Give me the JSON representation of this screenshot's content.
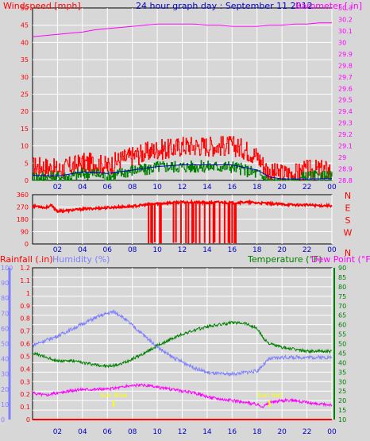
{
  "header": {
    "left": "Windspeed [mph]",
    "center": "24 hour graph day : September 11 2012",
    "right": "Barometer [.in]"
  },
  "colors": {
    "background": "#d7d7d7",
    "grid": "#ffffff",
    "wind": "#ff0000",
    "gust_dark": "#008000",
    "wind_avg": "#0000cc",
    "barometer": "#ff00ff",
    "direction": "#ff0000",
    "rain": "#ff0000",
    "humidity": "#8080ff",
    "temperature": "#008000",
    "dewpoint": "#ff00ff",
    "title_blue": "#0000cc",
    "sun_marker": "#ffff00"
  },
  "x_ticks": [
    "02",
    "04",
    "06",
    "08",
    "10",
    "12",
    "14",
    "16",
    "18",
    "20",
    "22",
    "00"
  ],
  "chart_data": [
    {
      "id": "wind",
      "type": "line",
      "title": "24 hour graph day : September 11 2012",
      "ylabel": "Windspeed [mph]",
      "ylabel_right": "Barometer [.in]",
      "ylim": [
        0,
        50
      ],
      "yticks": [
        "0",
        "5",
        "10",
        "15",
        "20",
        "25",
        "30",
        "35",
        "40",
        "45",
        "50"
      ],
      "y2lim": [
        28.8,
        30.3
      ],
      "y2ticks": [
        "28.8",
        "28.9",
        "29",
        "29.1",
        "29.2",
        "29.3",
        "29.4",
        "29.5",
        "29.6",
        "29.7",
        "29.8",
        "29.9",
        "30",
        "30.1",
        "30.2",
        "30.3"
      ],
      "xlim": [
        0,
        24
      ],
      "grid": true,
      "series": [
        {
          "key": "wind_gust",
          "color": "#ff0000",
          "x": [
            0,
            1,
            2,
            3,
            4,
            5,
            6,
            7,
            8,
            9,
            10,
            11,
            12,
            13,
            14,
            15,
            16,
            17,
            18,
            19,
            20,
            21,
            22,
            23,
            24
          ],
          "y": [
            4,
            4,
            3,
            4,
            5,
            5,
            4,
            6,
            7,
            8,
            9,
            9,
            10,
            10,
            10,
            10,
            10,
            9,
            7,
            2,
            2,
            2,
            3,
            3,
            3
          ]
        },
        {
          "key": "wind_speed",
          "color": "#008000",
          "x": [
            0,
            1,
            2,
            3,
            4,
            5,
            6,
            7,
            8,
            9,
            10,
            11,
            12,
            13,
            14,
            15,
            16,
            17,
            18,
            19,
            20,
            21,
            22,
            23,
            24
          ],
          "y": [
            1,
            1,
            1,
            1,
            2,
            2,
            1,
            2,
            3,
            3,
            4,
            4,
            4,
            4,
            4,
            4,
            4,
            3,
            2,
            0,
            0,
            0,
            1,
            1,
            1
          ]
        },
        {
          "key": "wind_average",
          "color": "#0000cc",
          "x": [
            0,
            2,
            4,
            6,
            8,
            10,
            12,
            14,
            16,
            18,
            19,
            20,
            22,
            24
          ],
          "y": [
            1.5,
            1.2,
            2.5,
            2,
            3,
            4,
            4.5,
            4.5,
            4.5,
            3,
            1,
            0.4,
            0.4,
            0.5
          ]
        },
        {
          "key": "barometer",
          "axis": "right",
          "color": "#ff00ff",
          "x": [
            0,
            1,
            2,
            3,
            4,
            5,
            6,
            7,
            8,
            9,
            10,
            11,
            12,
            13,
            14,
            15,
            16,
            17,
            18,
            19,
            20,
            21,
            22,
            23,
            24
          ],
          "y": [
            30.05,
            30.06,
            30.07,
            30.08,
            30.09,
            30.11,
            30.12,
            30.13,
            30.14,
            30.15,
            30.16,
            30.16,
            30.16,
            30.16,
            30.15,
            30.15,
            30.14,
            30.14,
            30.14,
            30.15,
            30.15,
            30.16,
            30.16,
            30.17,
            30.17
          ]
        }
      ]
    },
    {
      "id": "direction",
      "type": "line",
      "ylim": [
        0,
        360
      ],
      "yticks": [
        "0",
        "90",
        "180",
        "270",
        "360"
      ],
      "y2ticks": [
        "N",
        "W",
        "S",
        "E",
        "N"
      ],
      "xlim": [
        0,
        24
      ],
      "grid": true,
      "series": [
        {
          "key": "wind_direction",
          "color": "#ff0000",
          "x": [
            0,
            0.5,
            1,
            1.5,
            2,
            3,
            4,
            5,
            6,
            7,
            8,
            9,
            10,
            11,
            12,
            13,
            14,
            15,
            16,
            17,
            18,
            19,
            20,
            21,
            22,
            23,
            24
          ],
          "y": [
            275,
            275,
            265,
            280,
            240,
            245,
            255,
            260,
            265,
            270,
            275,
            285,
            295,
            300,
            305,
            305,
            300,
            305,
            300,
            305,
            300,
            295,
            290,
            285,
            285,
            280,
            280
          ]
        },
        {
          "key": "direction_spikes",
          "color": "#ff0000",
          "style": "spikes",
          "x": [
            9.3,
            9.5,
            9.6,
            9.8,
            10.2,
            10.3,
            11.3,
            11.5,
            11.9,
            12.3,
            12.5,
            12.8,
            12.9,
            13.1,
            13.4,
            13.8,
            14.2,
            14.5,
            14.6,
            15.0,
            15.4,
            15.7,
            15.8,
            16.0,
            16.2,
            16.3
          ],
          "y": [
            5,
            8,
            5,
            12,
            5,
            5,
            8,
            10,
            5,
            6,
            4,
            5,
            10,
            5,
            5,
            8,
            5,
            5,
            12,
            5,
            5,
            8,
            5,
            5,
            6,
            5
          ]
        }
      ]
    },
    {
      "id": "climate",
      "type": "line",
      "legend": [
        "Rainfall (.in)",
        "Humidity (%)",
        "Temperature (°F)",
        "Dew Point (°F)"
      ],
      "xlim": [
        0,
        24
      ],
      "grid": true,
      "rain_ticks": [
        "0",
        "0.1",
        "0.2",
        "0.3",
        "0.4",
        "0.5",
        "0.6",
        "0.7",
        "0.8",
        "0.9",
        "1",
        "1.1",
        "1.2"
      ],
      "rain_lim": [
        0,
        1.2
      ],
      "humidity_ticks": [
        "0",
        "10",
        "20",
        "30",
        "40",
        "50",
        "60",
        "70",
        "80",
        "90",
        "100"
      ],
      "humidity_lim": [
        0,
        100
      ],
      "temp_ticks": [
        "10",
        "15",
        "20",
        "25",
        "30",
        "35",
        "40",
        "45",
        "50",
        "55",
        "60",
        "65",
        "70",
        "75",
        "80",
        "85",
        "90"
      ],
      "temp_lim": [
        10,
        90
      ],
      "series": [
        {
          "key": "rainfall",
          "color": "#ff0000",
          "axis": "rain",
          "x": [
            0,
            24
          ],
          "y": [
            0,
            0
          ]
        },
        {
          "key": "humidity",
          "color": "#8080ff",
          "axis": "humidity",
          "x": [
            0,
            1,
            2,
            3,
            4,
            5,
            6,
            6.5,
            7,
            8,
            9,
            10,
            11,
            12,
            13,
            14,
            15,
            16,
            17,
            18,
            18.5,
            19,
            20,
            21,
            22,
            23,
            24
          ],
          "y": [
            49,
            52,
            55,
            59,
            63,
            67,
            70,
            71,
            69,
            62,
            55,
            48,
            42,
            38,
            34,
            31,
            30,
            30,
            31,
            32,
            36,
            40,
            41,
            41,
            41,
            41,
            41
          ]
        },
        {
          "key": "temperature",
          "color": "#008000",
          "axis": "temp",
          "x": [
            0,
            1,
            2,
            3,
            4,
            5,
            6,
            7,
            8,
            9,
            10,
            11,
            12,
            13,
            14,
            15,
            16,
            17,
            18,
            18.5,
            19,
            20,
            21,
            22,
            23,
            24
          ],
          "y": [
            45,
            43,
            41,
            41,
            40,
            39,
            38,
            39,
            42,
            45,
            49,
            52,
            55,
            57,
            59,
            60,
            61,
            61,
            58,
            53,
            50,
            48,
            47,
            46,
            46,
            46
          ]
        },
        {
          "key": "dewpoint",
          "color": "#ff00ff",
          "axis": "temp",
          "x": [
            0,
            1,
            2,
            3,
            4,
            5,
            6,
            7,
            8,
            9,
            10,
            11,
            12,
            13,
            14,
            15,
            16,
            17,
            18,
            18.5,
            19,
            20,
            21,
            22,
            23,
            24
          ],
          "y": [
            24,
            23,
            24,
            25,
            26,
            26,
            26,
            27,
            28,
            28,
            27,
            26,
            25,
            24,
            22,
            21,
            20,
            19,
            18,
            17,
            19,
            20,
            20,
            19,
            18,
            18
          ]
        }
      ],
      "annotations": [
        {
          "text": "Sun Rise",
          "x": 6.5
        },
        {
          "text": "Sun Set",
          "x": 19.0
        }
      ]
    }
  ]
}
